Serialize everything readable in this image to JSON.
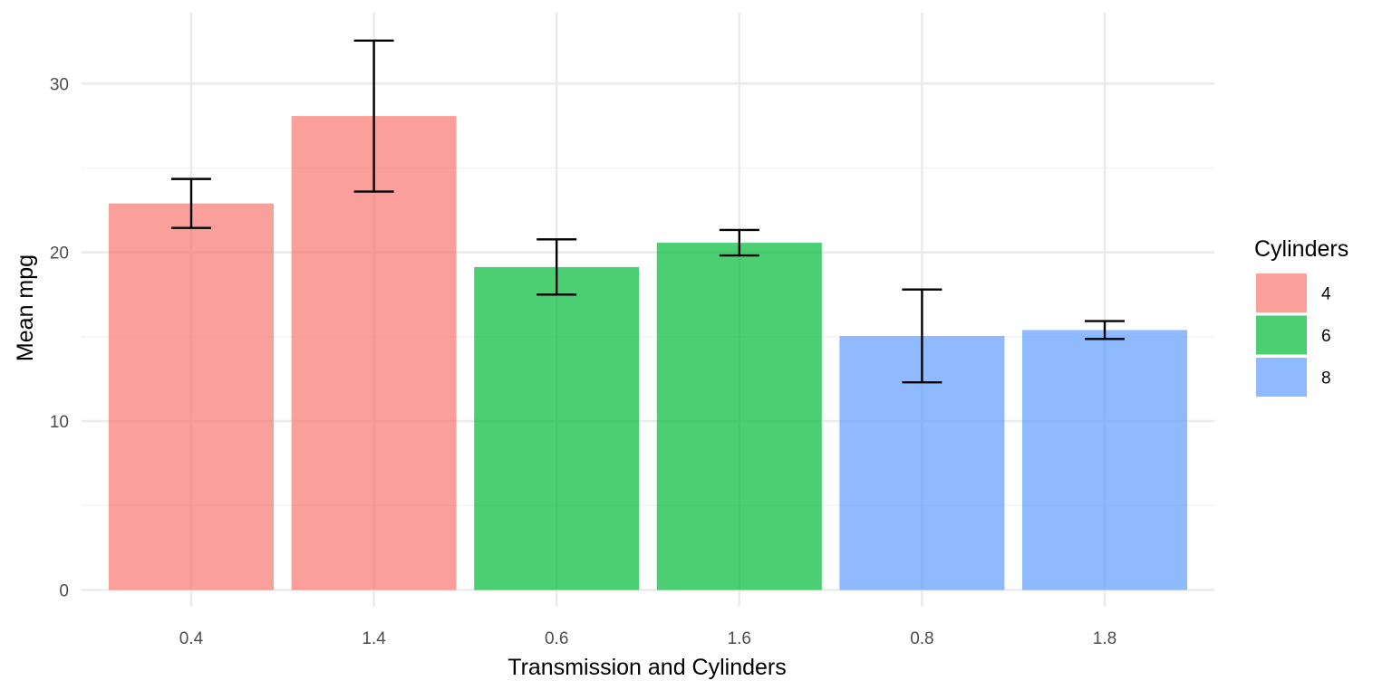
{
  "chart_data": {
    "type": "bar",
    "xlabel": "Transmission and Cylinders",
    "ylabel": "Mean mpg",
    "ylim": [
      0,
      33
    ],
    "yticks": [
      0,
      10,
      20,
      30
    ],
    "yminor": [
      5,
      15,
      25
    ],
    "grid": true,
    "legend": {
      "title": "Cylinders",
      "position": "right",
      "entries": [
        {
          "label": "4",
          "color": "#f8766d"
        },
        {
          "label": "6",
          "color": "#00ba38"
        },
        {
          "label": "8",
          "color": "#619cff"
        }
      ]
    },
    "bar_opacity": 0.7,
    "categories": [
      "0.4",
      "1.4",
      "0.6",
      "1.6",
      "0.8",
      "1.8"
    ],
    "values": [
      22.9,
      28.08,
      19.13,
      20.57,
      15.05,
      15.4
    ],
    "error_low": [
      21.45,
      23.6,
      17.5,
      19.82,
      12.3,
      14.87
    ],
    "error_high": [
      24.35,
      32.55,
      20.77,
      21.33,
      17.8,
      15.93
    ],
    "groups": [
      "4",
      "4",
      "6",
      "6",
      "8",
      "8"
    ]
  }
}
